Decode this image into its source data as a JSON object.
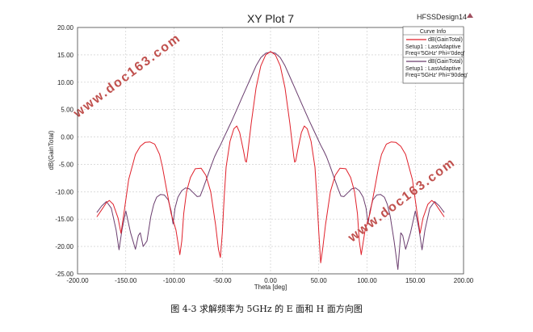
{
  "chart_data": {
    "type": "line",
    "title": "XY Plot 7",
    "design_name": "HFSSDesign14",
    "xlabel": "Theta [deg]",
    "ylabel": "dB(GainTotal)",
    "xlim": [
      -200,
      200
    ],
    "ylim": [
      -25,
      20
    ],
    "x_ticks": [
      "-200.00",
      "-150.00",
      "-100.00",
      "-50.00",
      "0.00",
      "50.00",
      "100.00",
      "150.00",
      "200.00"
    ],
    "y_ticks": [
      "20.00",
      "15.00",
      "10.00",
      "5.00",
      "0.00",
      "-5.00",
      "-10.00",
      "-15.00",
      "-20.00",
      "-25.00"
    ],
    "grid": true,
    "legend_title": "Curve Info",
    "legend_position": "top-right",
    "series": [
      {
        "name": "dB(GainTotal)",
        "legend_lines": [
          "dB(GainTotal)",
          "Setup1 : LastAdaptive",
          "Freq='5GHz' Phi='0deg'"
        ],
        "color": "#e0202a",
        "x": [
          -180,
          -175,
          -170,
          -167,
          -163,
          -158,
          -155,
          -152,
          -147,
          -140,
          -135,
          -130,
          -125,
          -120,
          -115,
          -112,
          -108,
          -103,
          -98,
          -94,
          -92,
          -90,
          -87,
          -83,
          -78,
          -72,
          -67,
          -62,
          -57,
          -54,
          -52,
          -50,
          -48,
          -46,
          -42,
          -38,
          -35,
          -32,
          -28,
          -26,
          -25,
          -24,
          -20,
          -15,
          -10,
          -5,
          0,
          5,
          10,
          15,
          20,
          24,
          25,
          26,
          28,
          32,
          35,
          38,
          42,
          46,
          48,
          50,
          52,
          54,
          57,
          62,
          67,
          72,
          78,
          83,
          87,
          90,
          92,
          94,
          98,
          103,
          108,
          112,
          115,
          120,
          125,
          130,
          135,
          140,
          147,
          152,
          155,
          158,
          163,
          167,
          170,
          175,
          180
        ],
        "y": [
          -14.6,
          -13.3,
          -12.0,
          -11.6,
          -12.3,
          -14.8,
          -17.6,
          -14.0,
          -7.8,
          -3.2,
          -1.7,
          -1.0,
          -0.9,
          -1.3,
          -3.2,
          -5.5,
          -9.3,
          -14.0,
          -17.0,
          -21.5,
          -19.0,
          -14.0,
          -10.0,
          -7.4,
          -5.8,
          -5.7,
          -7.0,
          -10.0,
          -16.0,
          -20.5,
          -22.0,
          -17.5,
          -11.0,
          -5.5,
          -0.8,
          1.5,
          2.0,
          0.8,
          -2.5,
          -4.4,
          -4.6,
          -3.5,
          2.5,
          9.0,
          13.0,
          15.0,
          15.6,
          15.0,
          13.0,
          9.0,
          2.5,
          -3.5,
          -4.6,
          -4.4,
          -2.5,
          0.8,
          2.0,
          1.5,
          -0.8,
          -5.5,
          -11.0,
          -17.5,
          -23.0,
          -20.5,
          -16.0,
          -10.0,
          -7.0,
          -5.7,
          -5.8,
          -7.4,
          -10.0,
          -14.0,
          -19.0,
          -21.5,
          -17.0,
          -14.0,
          -9.3,
          -5.5,
          -3.2,
          -1.3,
          -0.9,
          -1.0,
          -1.7,
          -3.2,
          -7.8,
          -14.0,
          -17.6,
          -14.8,
          -12.3,
          -11.6,
          -12.0,
          -13.3,
          -14.6
        ]
      },
      {
        "name": "dB(GainTotal)",
        "legend_lines": [
          "dB(GainTotal)",
          "Setup1 : LastAdaptive",
          "Freq='5GHz' Phi='90deg'"
        ],
        "color": "#6a3d6e",
        "x": [
          -180,
          -175,
          -170,
          -165,
          -160,
          -157,
          -154,
          -150,
          -145,
          -140,
          -137,
          -135,
          -132,
          -128,
          -124,
          -121,
          -118,
          -114,
          -110,
          -106,
          -103,
          -101,
          -99,
          -96,
          -92,
          -88,
          -84,
          -80,
          -76,
          -73,
          -70,
          -66,
          -62,
          -58,
          -55,
          -52,
          -48,
          -44,
          -40,
          -35,
          -30,
          -25,
          -20,
          -15,
          -10,
          -5,
          0,
          5,
          10,
          15,
          20,
          25,
          30,
          35,
          40,
          44,
          48,
          52,
          55,
          58,
          62,
          66,
          70,
          73,
          76,
          80,
          84,
          88,
          92,
          96,
          99,
          101,
          103,
          106,
          110,
          114,
          118,
          121,
          124,
          128,
          132,
          135,
          137,
          140,
          145,
          150,
          154,
          157,
          160,
          165,
          170,
          175,
          180
        ],
        "y": [
          -13.8,
          -12.6,
          -11.8,
          -13.0,
          -17.0,
          -20.6,
          -17.0,
          -13.5,
          -17.5,
          -20.5,
          -18.0,
          -17.5,
          -20.0,
          -19.0,
          -14.5,
          -12.3,
          -11.0,
          -10.5,
          -10.6,
          -11.5,
          -13.5,
          -15.9,
          -13.0,
          -11.0,
          -9.8,
          -9.3,
          -9.5,
          -10.2,
          -10.9,
          -10.8,
          -9.5,
          -7.5,
          -5.5,
          -3.6,
          -2.5,
          -1.5,
          0.0,
          1.5,
          3.0,
          5.0,
          7.0,
          9.0,
          11.0,
          13.0,
          14.5,
          15.3,
          15.5,
          15.3,
          14.5,
          13.0,
          11.0,
          9.0,
          7.0,
          5.0,
          3.0,
          1.5,
          0.0,
          -1.5,
          -2.5,
          -3.6,
          -5.5,
          -7.5,
          -9.5,
          -10.8,
          -10.9,
          -10.2,
          -9.5,
          -9.3,
          -9.8,
          -11.0,
          -13.0,
          -15.9,
          -13.5,
          -11.5,
          -10.6,
          -10.5,
          -11.0,
          -12.3,
          -14.5,
          -19.0,
          -24.2,
          -17.5,
          -18.0,
          -20.5,
          -17.5,
          -13.5,
          -17.0,
          -20.6,
          -17.0,
          -13.0,
          -11.8,
          -12.6,
          -13.8
        ]
      }
    ]
  },
  "watermark": "www.doc163.com",
  "caption": "图 4-3  求解频率为 5GHz 的 E 面和 H 面方向图"
}
